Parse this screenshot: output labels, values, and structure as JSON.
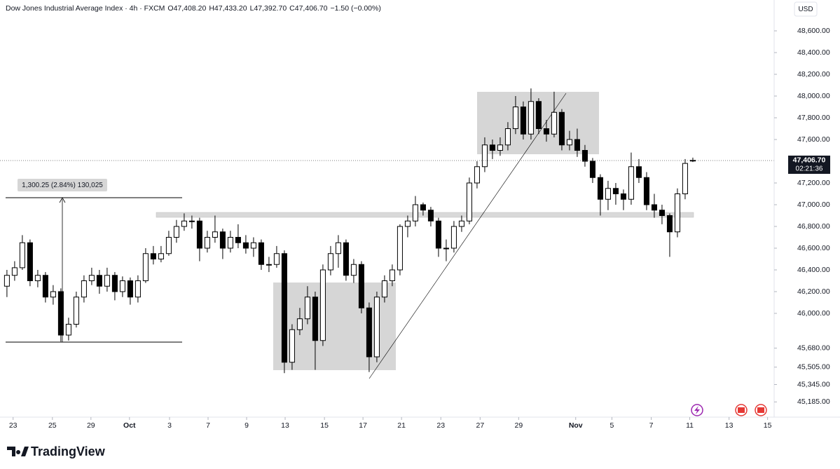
{
  "chart_data": {
    "type": "candlestick",
    "title": "Dow Jones Industrial Average Index · 4h · FXCM",
    "header": [
      "O47,408.20",
      "H47,433.20",
      "L47,392.70",
      "C47,406.70",
      "−1.50 (−0.00%)"
    ],
    "currency": "USD",
    "last_price_label": "47,406.70",
    "countdown": "02:21:36",
    "measure_label": "1,300.25 (2.84%) 130,025",
    "brand": "TradingView",
    "up_color": "#ffffff",
    "down_color": "#000000",
    "ylim": [
      45045,
      48884
    ],
    "yticks": [
      {
        "value": 48600,
        "label": "48,600.00"
      },
      {
        "value": 48400,
        "label": "48,400.00"
      },
      {
        "value": 48200,
        "label": "48,200.00"
      },
      {
        "value": 48000,
        "label": "48,000.00"
      },
      {
        "value": 47800,
        "label": "47,800.00"
      },
      {
        "value": 47600,
        "label": "47,600.00"
      },
      {
        "value": 47200,
        "label": "47,200.00"
      },
      {
        "value": 47000,
        "label": "47,000.00"
      },
      {
        "value": 46800,
        "label": "46,800.00"
      },
      {
        "value": 46600,
        "label": "46,600.00"
      },
      {
        "value": 46400,
        "label": "46,400.00"
      },
      {
        "value": 46200,
        "label": "46,200.00"
      },
      {
        "value": 46000,
        "label": "46,000.00"
      },
      {
        "value": 45680,
        "label": "45,680.00"
      },
      {
        "value": 45505,
        "label": "45,505.00"
      },
      {
        "value": 45345,
        "label": "45,345.00"
      },
      {
        "value": 45185,
        "label": "45,185.00"
      }
    ],
    "xlim": [
      -0.9,
      99.55
    ],
    "xticks": [
      {
        "value": 0.8,
        "label": "23"
      },
      {
        "value": 5.9,
        "label": "25"
      },
      {
        "value": 10.9,
        "label": "29"
      },
      {
        "value": 15.9,
        "label": "Oct"
      },
      {
        "value": 21.1,
        "label": "3"
      },
      {
        "value": 26.1,
        "label": "7"
      },
      {
        "value": 31.1,
        "label": "9"
      },
      {
        "value": 36.1,
        "label": "13"
      },
      {
        "value": 41.2,
        "label": "15"
      },
      {
        "value": 46.2,
        "label": "17"
      },
      {
        "value": 51.2,
        "label": "21"
      },
      {
        "value": 56.3,
        "label": "23"
      },
      {
        "value": 61.4,
        "label": "27"
      },
      {
        "value": 66.4,
        "label": "29"
      },
      {
        "value": 73.8,
        "label": "Nov"
      },
      {
        "value": 78.5,
        "label": "5"
      },
      {
        "value": 83.6,
        "label": "7"
      },
      {
        "value": 88.6,
        "label": "11"
      },
      {
        "value": 93.7,
        "label": "13"
      },
      {
        "value": 98.7,
        "label": "15"
      }
    ],
    "ohlc": [
      [
        46250,
        46400,
        46150,
        46350
      ],
      [
        46350,
        46480,
        46300,
        46420
      ],
      [
        46420,
        46720,
        46400,
        46650
      ],
      [
        46650,
        46680,
        46250,
        46300
      ],
      [
        46300,
        46400,
        46240,
        46350
      ],
      [
        46350,
        46380,
        46100,
        46150
      ],
      [
        46150,
        46260,
        46080,
        46200
      ],
      [
        46200,
        46230,
        45740,
        45800
      ],
      [
        45800,
        45960,
        45750,
        45900
      ],
      [
        45900,
        46200,
        45870,
        46150
      ],
      [
        46150,
        46350,
        46100,
        46300
      ],
      [
        46300,
        46420,
        46260,
        46350
      ],
      [
        46350,
        46400,
        46180,
        46250
      ],
      [
        46250,
        46420,
        46200,
        46350
      ],
      [
        46350,
        46380,
        46120,
        46200
      ],
      [
        46200,
        46340,
        46150,
        46300
      ],
      [
        46300,
        46330,
        46080,
        46150
      ],
      [
        46150,
        46350,
        46100,
        46300
      ],
      [
        46300,
        46600,
        46280,
        46550
      ],
      [
        46550,
        46620,
        46450,
        46500
      ],
      [
        46500,
        46620,
        46470,
        46550
      ],
      [
        46550,
        46760,
        46530,
        46700
      ],
      [
        46700,
        46860,
        46650,
        46800
      ],
      [
        46800,
        46920,
        46760,
        46850
      ],
      [
        46850,
        46900,
        46780,
        46850
      ],
      [
        46850,
        46880,
        46480,
        46600
      ],
      [
        46600,
        46760,
        46560,
        46700
      ],
      [
        46700,
        46900,
        46650,
        46750
      ],
      [
        46750,
        46780,
        46500,
        46600
      ],
      [
        46600,
        46760,
        46560,
        46700
      ],
      [
        46700,
        46820,
        46600,
        46650
      ],
      [
        46650,
        46720,
        46550,
        46600
      ],
      [
        46600,
        46700,
        46520,
        46650
      ],
      [
        46650,
        46680,
        46400,
        46450
      ],
      [
        46450,
        46520,
        46380,
        46450
      ],
      [
        46450,
        46620,
        46420,
        46550
      ],
      [
        46550,
        46580,
        45450,
        45550
      ],
      [
        45550,
        45900,
        45480,
        45850
      ],
      [
        45850,
        46050,
        45800,
        45950
      ],
      [
        45950,
        46250,
        45900,
        46150
      ],
      [
        46150,
        46200,
        45480,
        45750
      ],
      [
        45750,
        46450,
        45700,
        46400
      ],
      [
        46400,
        46620,
        46350,
        46550
      ],
      [
        46550,
        46720,
        46420,
        46650
      ],
      [
        46650,
        46680,
        46300,
        46350
      ],
      [
        46350,
        46500,
        46280,
        46450
      ],
      [
        46450,
        46480,
        46000,
        46050
      ],
      [
        46050,
        46100,
        45460,
        45600
      ],
      [
        45600,
        46200,
        45550,
        46150
      ],
      [
        46150,
        46350,
        46100,
        46300
      ],
      [
        46300,
        46450,
        46250,
        46400
      ],
      [
        46400,
        46820,
        46350,
        46800
      ],
      [
        46800,
        46900,
        46700,
        46850
      ],
      [
        46850,
        47080,
        46800,
        47000
      ],
      [
        47000,
        47020,
        46900,
        46950
      ],
      [
        46950,
        46980,
        46800,
        46850
      ],
      [
        46850,
        46880,
        46520,
        46600
      ],
      [
        46600,
        46680,
        46480,
        46600
      ],
      [
        46600,
        46850,
        46560,
        46800
      ],
      [
        46800,
        46900,
        46750,
        46850
      ],
      [
        46850,
        47250,
        46820,
        47200
      ],
      [
        47200,
        47400,
        47150,
        47350
      ],
      [
        47350,
        47620,
        47300,
        47550
      ],
      [
        47550,
        47600,
        47420,
        47500
      ],
      [
        47500,
        47620,
        47450,
        47550
      ],
      [
        47550,
        47760,
        47500,
        47700
      ],
      [
        47700,
        48000,
        47650,
        47900
      ],
      [
        47900,
        47950,
        47600,
        47650
      ],
      [
        47650,
        48070,
        47600,
        47950
      ],
      [
        47950,
        47980,
        47650,
        47700
      ],
      [
        47700,
        47780,
        47580,
        47650
      ],
      [
        47650,
        48040,
        47620,
        47850
      ],
      [
        47850,
        47880,
        47500,
        47550
      ],
      [
        47550,
        47680,
        47500,
        47600
      ],
      [
        47600,
        47700,
        47440,
        47500
      ],
      [
        47500,
        47550,
        47350,
        47400
      ],
      [
        47400,
        47430,
        47200,
        47250
      ],
      [
        47250,
        47280,
        46900,
        47050
      ],
      [
        47050,
        47220,
        46950,
        47150
      ],
      [
        47150,
        47200,
        47000,
        47100
      ],
      [
        47100,
        47140,
        46950,
        47050
      ],
      [
        47050,
        47480,
        47000,
        47350
      ],
      [
        47350,
        47420,
        47200,
        47250
      ],
      [
        47250,
        47300,
        46950,
        47000
      ],
      [
        47000,
        47100,
        46880,
        46950
      ],
      [
        46950,
        47000,
        46820,
        46900
      ],
      [
        46900,
        46920,
        46520,
        46750
      ],
      [
        46750,
        47150,
        46700,
        47100
      ],
      [
        47100,
        47420,
        47050,
        47380
      ],
      [
        47408.2,
        47433.2,
        47392.7,
        47406.7
      ]
    ]
  }
}
